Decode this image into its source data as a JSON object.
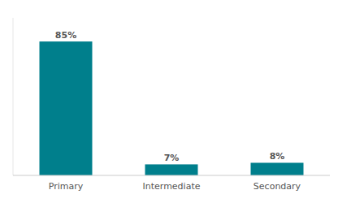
{
  "chart_data": {
    "type": "bar",
    "categories": [
      "Primary",
      "Intermediate",
      "Secondary"
    ],
    "values": [
      85,
      7,
      8
    ],
    "value_labels": [
      "85%",
      "7%",
      "8%"
    ],
    "color": "#007f8c",
    "ylim": [
      0,
      100
    ],
    "data_labels": true,
    "tick_labels": "x",
    "grid": false
  }
}
